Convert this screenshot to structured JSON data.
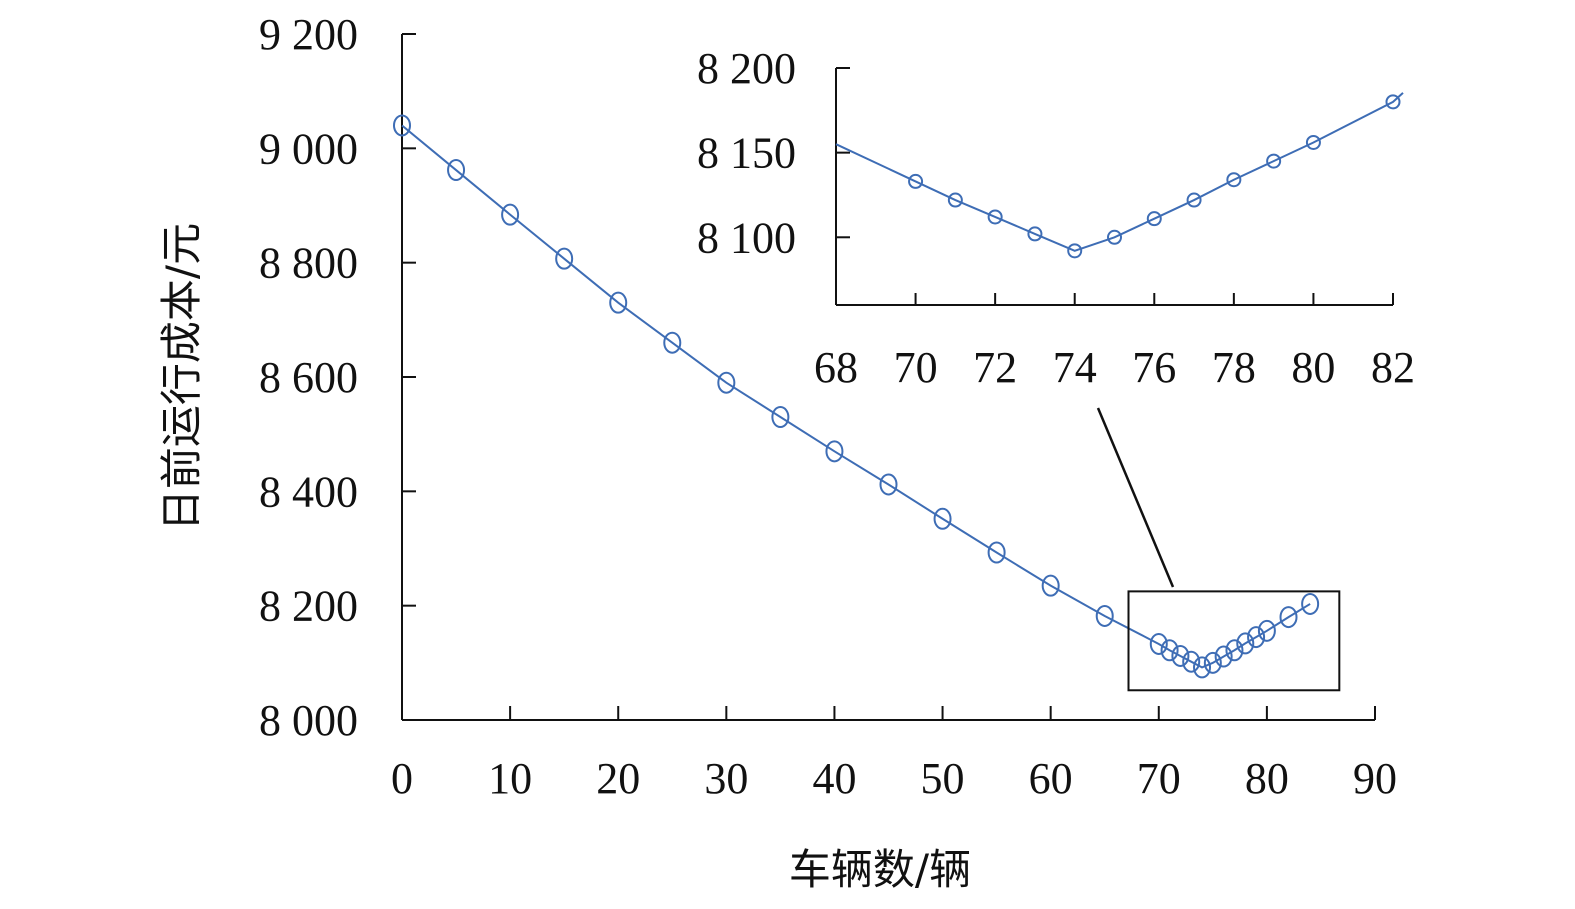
{
  "chart_data": [
    {
      "type": "line",
      "title": "",
      "xlabel": "车辆数/辆",
      "ylabel": "日前运行成本/元",
      "xlim": [
        0,
        90
      ],
      "ylim": [
        8000,
        9200
      ],
      "xticks": [
        0,
        10,
        20,
        30,
        40,
        50,
        60,
        70,
        80,
        90
      ],
      "yticks": [
        8000,
        8200,
        8400,
        8600,
        8800,
        9000,
        9200
      ],
      "ytick_labels": [
        "8 000",
        "8 200",
        "8 400",
        "8 600",
        "8 800",
        "9 000",
        "9 200"
      ],
      "grid": false,
      "color": "#3E6DB5",
      "series": [
        {
          "x": [
            0,
            5,
            10,
            15,
            20,
            25,
            30,
            35,
            40,
            45,
            50,
            55,
            60,
            65,
            70,
            71,
            72,
            73,
            74,
            75,
            76,
            77,
            78,
            79,
            80,
            82,
            84
          ],
          "values": [
            9040,
            8962,
            8884,
            8807,
            8730,
            8660,
            8590,
            8530,
            8470,
            8412,
            8352,
            8293,
            8235,
            8182,
            8133,
            8122,
            8112,
            8102,
            8092,
            8100,
            8111,
            8122,
            8134,
            8145,
            8156,
            8180,
            8203
          ]
        }
      ]
    },
    {
      "type": "line",
      "title": "",
      "xlabel": "",
      "ylabel": "",
      "xlim": [
        68,
        82
      ],
      "ylim": [
        8060,
        8200
      ],
      "xticks": [
        68,
        70,
        72,
        74,
        76,
        78,
        80,
        82
      ],
      "yticks": [
        8100,
        8150,
        8200
      ],
      "ytick_labels": [
        "8 100",
        "8 150",
        "8 200"
      ],
      "grid": false,
      "color": "#3E6DB5",
      "series": [
        {
          "x": [
            70,
            71,
            72,
            73,
            74,
            75,
            76,
            77,
            78,
            79,
            80,
            82
          ],
          "values": [
            8133,
            8122,
            8112,
            8102,
            8092,
            8100,
            8111,
            8122,
            8134,
            8145,
            8156,
            8180
          ]
        }
      ]
    }
  ]
}
